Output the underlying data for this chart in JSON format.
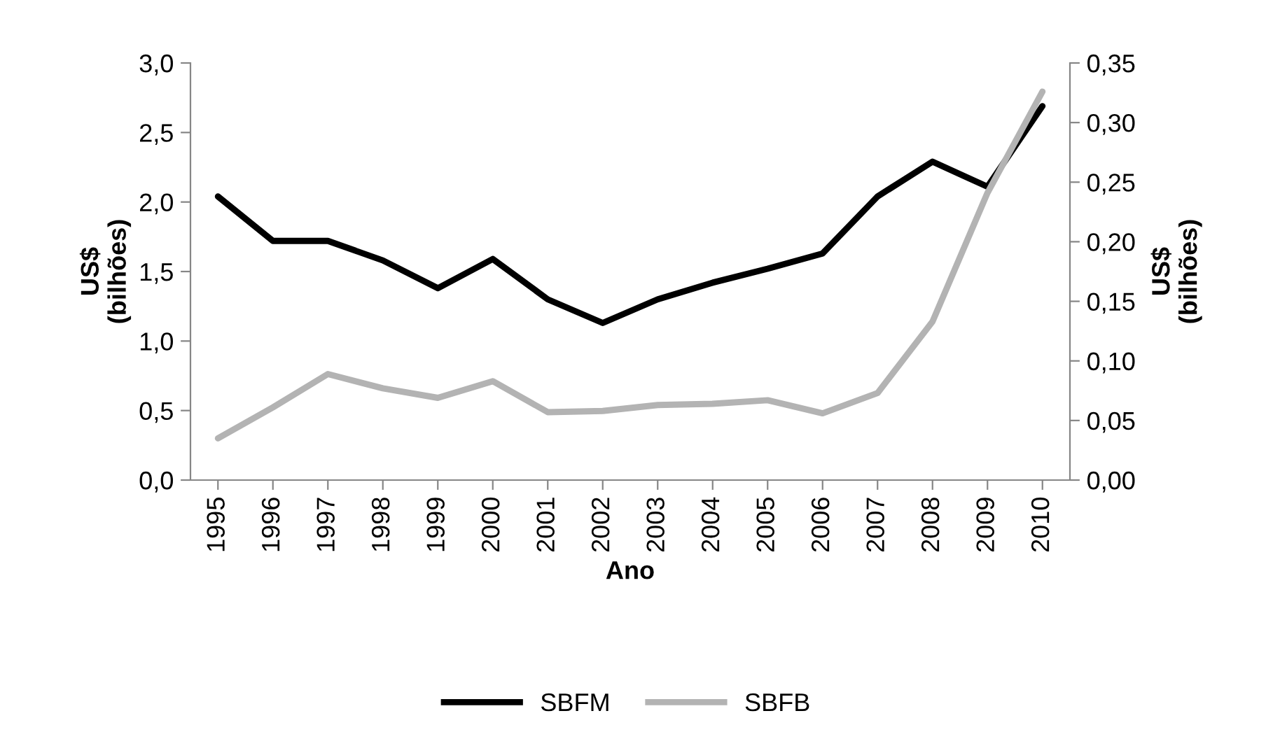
{
  "chart_data": {
    "type": "line",
    "xlabel": "Ano",
    "ylabel": "US$\n(bilhões)",
    "y2label": "US$\n(bilhões)",
    "categories": [
      "1995",
      "1996",
      "1997",
      "1998",
      "1999",
      "2000",
      "2001",
      "2002",
      "2003",
      "2004",
      "2005",
      "2006",
      "2007",
      "2008",
      "2009",
      "2010"
    ],
    "series": [
      {
        "name": "SBFM",
        "color": "#000000",
        "values": [
          2.04,
          1.72,
          1.72,
          1.58,
          1.38,
          1.59,
          1.3,
          1.13,
          1.3,
          1.42,
          1.52,
          1.63,
          2.04,
          2.29,
          2.11,
          2.69
        ]
      },
      {
        "name": "SBFB",
        "color": "#b3b3b3",
        "axis": "y2",
        "values": [
          0.035,
          0.061,
          0.089,
          0.077,
          0.069,
          0.083,
          0.057,
          0.058,
          0.063,
          0.064,
          0.067,
          0.056,
          0.073,
          0.133,
          0.241,
          0.326
        ]
      }
    ],
    "ylim": [
      0,
      3
    ],
    "yticks": [
      {
        "value": 0,
        "label": "0,0"
      },
      {
        "value": 0.5,
        "label": "0,5"
      },
      {
        "value": 1,
        "label": "1,0"
      },
      {
        "value": 1.5,
        "label": "1,5"
      },
      {
        "value": 2,
        "label": "2,0"
      },
      {
        "value": 2.5,
        "label": "2,5"
      },
      {
        "value": 3,
        "label": "3,0"
      }
    ],
    "y2lim": [
      0,
      0.35
    ],
    "y2ticks": [
      {
        "value": 0,
        "label": "0,00"
      },
      {
        "value": 0.05,
        "label": "0,05"
      },
      {
        "value": 0.1,
        "label": "0,10"
      },
      {
        "value": 0.15,
        "label": "0,15"
      },
      {
        "value": 0.2,
        "label": "0,20"
      },
      {
        "value": 0.25,
        "label": "0,25"
      },
      {
        "value": 0.3,
        "label": "0,30"
      },
      {
        "value": 0.35,
        "label": "0,35"
      }
    ],
    "grid": false,
    "legend": "bottom",
    "marker": "none",
    "line_style": "solid"
  }
}
